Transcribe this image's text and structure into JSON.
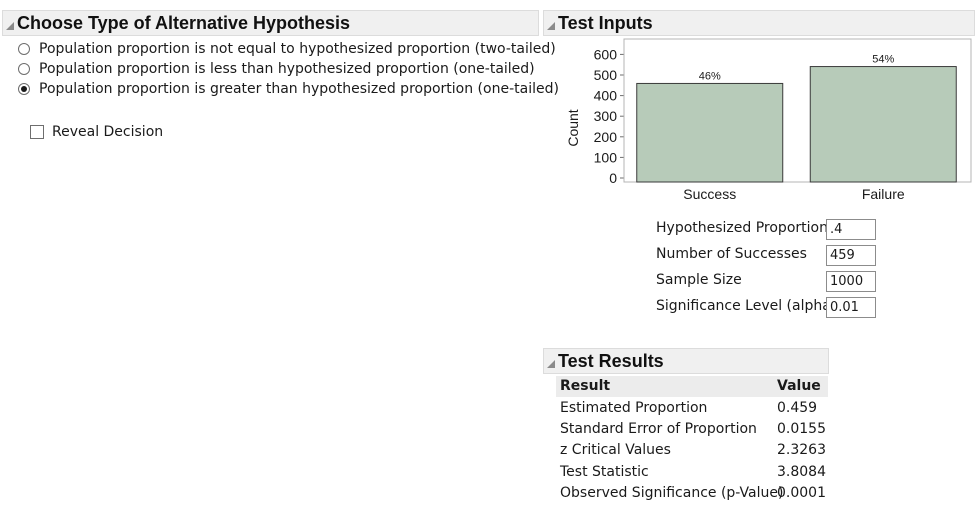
{
  "hypothesis": {
    "title": "Choose Type of Alternative Hypothesis",
    "options": [
      {
        "label": "Population proportion is not equal to hypothesized proportion (two-tailed)",
        "selected": false
      },
      {
        "label": "Population proportion is less than hypothesized proportion (one-tailed)",
        "selected": false
      },
      {
        "label": "Population proportion is greater than hypothesized proportion (one-tailed)",
        "selected": true
      }
    ],
    "reveal_label": "Reveal Decision",
    "reveal_checked": false
  },
  "test_inputs": {
    "title": "Test Inputs",
    "fields": [
      {
        "label": "Hypothesized Proportion",
        "value": ".4"
      },
      {
        "label": "Number of Successes",
        "value": "459"
      },
      {
        "label": "Sample Size",
        "value": "1000"
      },
      {
        "label": "Significance Level (alpha)",
        "value": "0.01"
      }
    ]
  },
  "chart_data": {
    "type": "bar",
    "categories": [
      "Success",
      "Failure"
    ],
    "values": [
      459,
      541
    ],
    "data_labels": [
      "46%",
      "54%"
    ],
    "ylabel": "Count",
    "yticks": [
      "0",
      "100",
      "200",
      "300",
      "400",
      "500",
      "600"
    ],
    "ylim": [
      0,
      650
    ],
    "bar_color": "#b7cbb9"
  },
  "test_results": {
    "title": "Test Results",
    "headers": [
      "Result",
      "Value"
    ],
    "rows": [
      [
        "Estimated Proportion",
        "0.459"
      ],
      [
        "Standard Error of Proportion",
        "0.0155"
      ],
      [
        "z Critical Values",
        "2.3263"
      ],
      [
        "Test Statistic",
        "3.8084"
      ],
      [
        "Observed Significance (p-Value)",
        "0.0001"
      ]
    ]
  }
}
